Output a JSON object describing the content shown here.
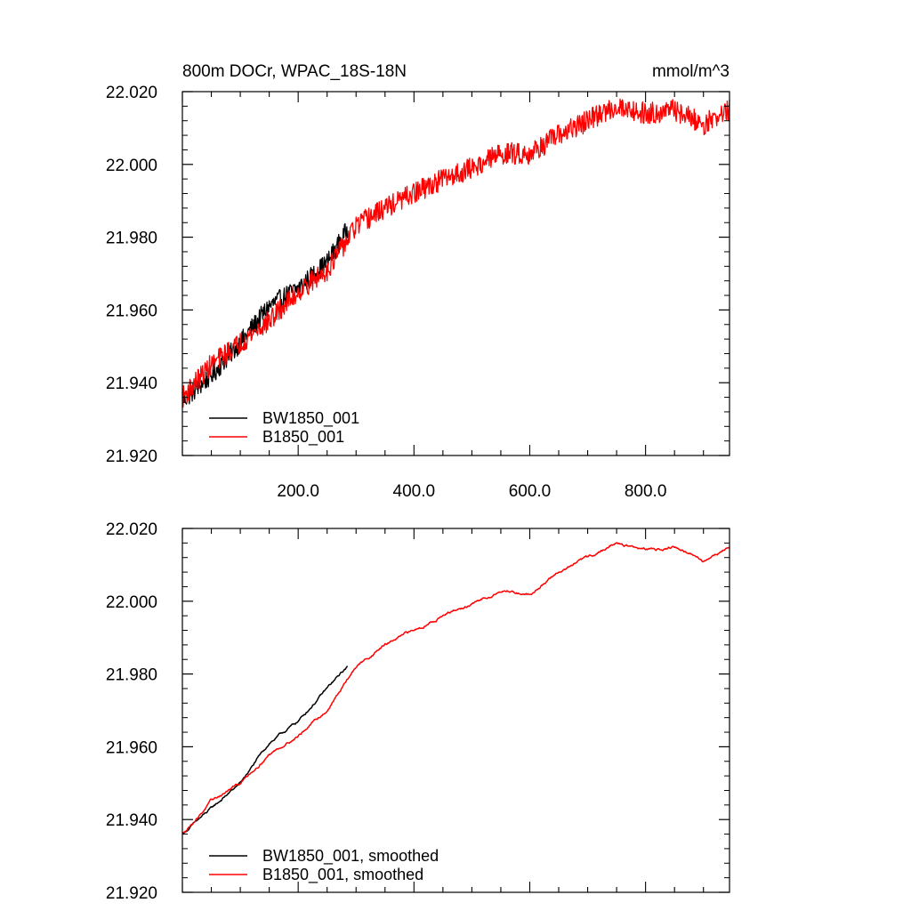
{
  "chart_data": [
    {
      "type": "line",
      "title_left": "800m DOCr, WPAC_18S-18N",
      "title_right": "mmol/m^3",
      "xlim": [
        0,
        945
      ],
      "ylim": [
        21.92,
        22.02
      ],
      "yticks": [
        "21.920",
        "21.940",
        "21.960",
        "21.980",
        "22.000",
        "22.020"
      ],
      "xticks": [
        "200.0",
        "400.0",
        "600.0",
        "800.0"
      ],
      "legend": {
        "placement": "bottom-left"
      },
      "series": [
        {
          "name": "BW1850_001",
          "color": "#000000",
          "x_range": [
            0,
            285
          ],
          "noise_amplitude": 0.0028,
          "points": [
            [
              0,
              21.935
            ],
            [
              50,
              21.942
            ],
            [
              100,
              21.951
            ],
            [
              150,
              21.961
            ],
            [
              200,
              21.966
            ],
            [
              250,
              21.973
            ],
            [
              285,
              21.982
            ]
          ]
        },
        {
          "name": "B1850_001",
          "color": "#ff0000",
          "x_range": [
            0,
            945
          ],
          "noise_amplitude": 0.003,
          "points": [
            [
              0,
              21.936
            ],
            [
              50,
              21.945
            ],
            [
              100,
              21.951
            ],
            [
              150,
              21.957
            ],
            [
              200,
              21.965
            ],
            [
              250,
              21.971
            ],
            [
              300,
              21.983
            ],
            [
              350,
              21.988
            ],
            [
              400,
              21.992
            ],
            [
              450,
              21.996
            ],
            [
              500,
              21.999
            ],
            [
              550,
              22.003
            ],
            [
              600,
              22.003
            ],
            [
              650,
              22.008
            ],
            [
              700,
              22.012
            ],
            [
              750,
              22.016
            ],
            [
              800,
              22.014
            ],
            [
              850,
              22.015
            ],
            [
              900,
              22.011
            ],
            [
              945,
              22.015
            ]
          ]
        }
      ]
    },
    {
      "type": "line",
      "xlim": [
        0,
        945
      ],
      "ylim": [
        21.92,
        22.02
      ],
      "yticks": [
        "21.920",
        "21.940",
        "21.960",
        "21.980",
        "22.000",
        "22.020"
      ],
      "legend": {
        "placement": "bottom-left"
      },
      "series": [
        {
          "name": "BW1850_001, smoothed",
          "color": "#000000",
          "x_range": [
            0,
            285
          ],
          "noise_amplitude": 0.0004,
          "points": [
            [
              0,
              21.936
            ],
            [
              50,
              21.943
            ],
            [
              100,
              21.95
            ],
            [
              150,
              21.961
            ],
            [
              200,
              21.967
            ],
            [
              250,
              21.976
            ],
            [
              285,
              21.982
            ]
          ]
        },
        {
          "name": "B1850_001, smoothed",
          "color": "#ff0000",
          "x_range": [
            0,
            945
          ],
          "noise_amplitude": 0.0004,
          "points": [
            [
              0,
              21.936
            ],
            [
              50,
              21.945
            ],
            [
              100,
              21.95
            ],
            [
              150,
              21.958
            ],
            [
              200,
              21.963
            ],
            [
              250,
              21.97
            ],
            [
              300,
              21.982
            ],
            [
              350,
              21.988
            ],
            [
              400,
              21.992
            ],
            [
              450,
              21.996
            ],
            [
              500,
              21.999
            ],
            [
              550,
              22.003
            ],
            [
              600,
              22.002
            ],
            [
              650,
              22.008
            ],
            [
              700,
              22.012
            ],
            [
              750,
              22.016
            ],
            [
              800,
              22.014
            ],
            [
              850,
              22.015
            ],
            [
              900,
              22.011
            ],
            [
              945,
              22.015
            ]
          ]
        }
      ]
    }
  ]
}
